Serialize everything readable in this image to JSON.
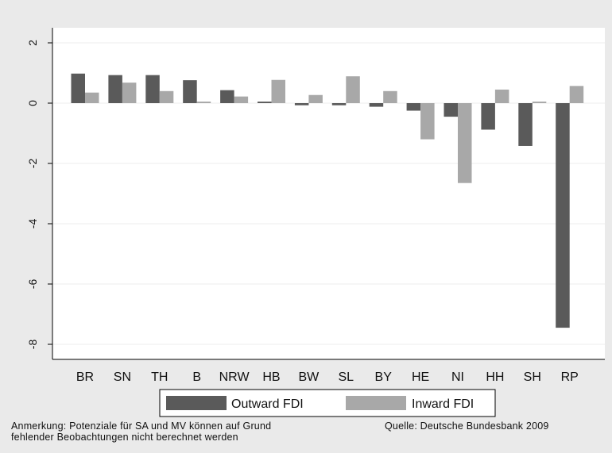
{
  "chart_data": {
    "type": "bar",
    "categories": [
      "BR",
      "SN",
      "TH",
      "B",
      "NRW",
      "HB",
      "BW",
      "SL",
      "BY",
      "HE",
      "NI",
      "HH",
      "SH",
      "RP"
    ],
    "series": [
      {
        "name": "Outward FDI",
        "color": "#5a5a5a",
        "values": [
          0.98,
          0.93,
          0.93,
          0.76,
          0.43,
          0.05,
          -0.07,
          -0.07,
          -0.12,
          -0.25,
          -0.45,
          -0.88,
          -1.42,
          -7.45
        ]
      },
      {
        "name": "Inward FDI",
        "color": "#a8a8a8",
        "values": [
          0.35,
          0.68,
          0.4,
          0.05,
          0.22,
          0.77,
          0.27,
          0.89,
          0.4,
          -1.2,
          -2.65,
          0.45,
          0.05,
          0.57
        ]
      }
    ],
    "ylim": [
      -8.5,
      2.5
    ],
    "yticks": [
      2,
      0,
      -2,
      -4,
      -6,
      -8
    ],
    "ytick_labels": [
      "2",
      "0",
      "-2",
      "-4",
      "-6",
      "-8"
    ],
    "grid": true,
    "legend_position": "bottom",
    "title": "",
    "xlabel": "",
    "ylabel": ""
  },
  "footer": {
    "note_line1": "Anmerkung: Potenziale für SA und MV können auf Grund",
    "note_line2": "fehlender Beobachtungen nicht berechnet werden",
    "source": "Quelle: Deutsche Bundesbank 2009"
  }
}
